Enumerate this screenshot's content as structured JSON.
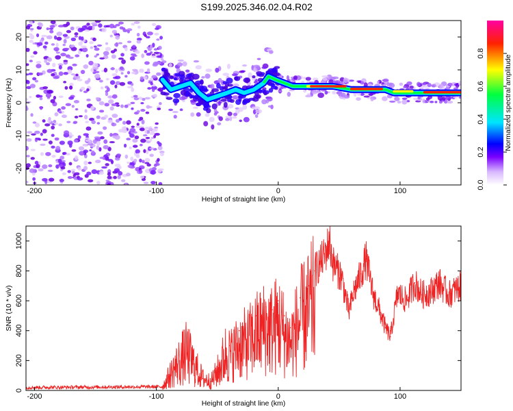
{
  "chart_data": [
    {
      "type": "heatmap",
      "title": "S199.2025.346.02.04.R02",
      "xlabel": "Height of straight line (km)",
      "ylabel": "Frequency (Hz)",
      "xlim": [
        -207,
        150
      ],
      "ylim": [
        -25,
        25
      ],
      "xticks": [
        -200,
        -100,
        0,
        100
      ],
      "yticks": [
        -20,
        -10,
        0,
        10,
        20
      ],
      "colorbar": {
        "label": "Normalized spectral amplitude",
        "range": [
          0,
          1
        ],
        "ticks": [
          "0.0",
          "0.2",
          "0.4",
          "0.6",
          "0.8"
        ],
        "colormap": [
          "#ffffff",
          "#7a00ff",
          "#0000ff",
          "#00e5ff",
          "#00ff40",
          "#ffff00",
          "#ff2200",
          "#ff00a0"
        ]
      },
      "ridge": {
        "description": "dominant frequency trace",
        "x": [
          -95,
          -88,
          -80,
          -72,
          -65,
          -58,
          -50,
          -42,
          -35,
          -28,
          -20,
          -12,
          -8,
          -2,
          5,
          12,
          20,
          30,
          45,
          60,
          75,
          88,
          95,
          110,
          125,
          150
        ],
        "y": [
          7,
          4,
          5,
          6,
          3,
          1,
          2,
          3,
          4,
          3,
          4,
          6,
          8,
          7,
          6,
          5,
          5,
          5,
          5,
          4,
          4,
          4,
          3,
          3,
          3,
          3
        ]
      },
      "noise_region_x": [
        -207,
        -95
      ]
    },
    {
      "type": "line",
      "xlabel": "Height of straight line (km)",
      "ylabel": "SNR (10 * v/v)",
      "xlim": [
        -207,
        150
      ],
      "ylim": [
        0,
        1100
      ],
      "xticks": [
        -200,
        -100,
        0,
        100
      ],
      "yticks": [
        0,
        200,
        400,
        600,
        800,
        1000
      ],
      "color": "#ee2222",
      "series": [
        {
          "name": "SNR",
          "x": [
            -207,
            -95,
            -85,
            -75,
            -70,
            -62,
            -55,
            -48,
            -40,
            -32,
            -25,
            -18,
            -10,
            -5,
            0,
            5,
            10,
            18,
            25,
            30,
            38,
            42,
            45,
            52,
            58,
            62,
            68,
            72,
            78,
            82,
            88,
            92,
            98,
            105,
            112,
            118,
            125,
            132,
            140,
            150
          ],
          "values": [
            20,
            25,
            150,
            250,
            180,
            80,
            60,
            150,
            300,
            400,
            420,
            500,
            560,
            540,
            600,
            500,
            420,
            620,
            700,
            800,
            900,
            1000,
            850,
            760,
            520,
            660,
            780,
            880,
            640,
            560,
            420,
            360,
            650,
            600,
            720,
            640,
            660,
            720,
            640,
            700
          ]
        }
      ]
    }
  ]
}
